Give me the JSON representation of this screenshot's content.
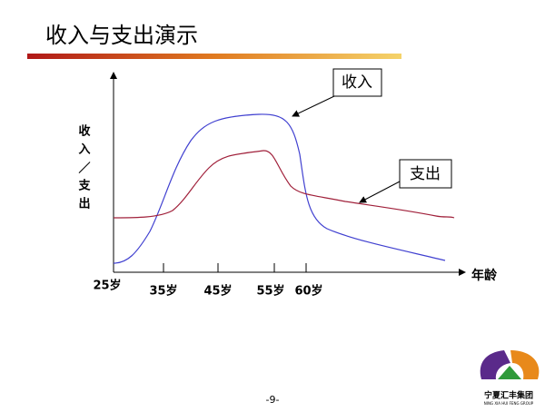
{
  "header": {
    "title": "收入与支出演示"
  },
  "diagram": {
    "y_axis_label": [
      "收",
      "入",
      "／",
      "支",
      "出"
    ],
    "x_axis_label": "年龄",
    "x_labels": [
      "25岁",
      "35岁",
      "45岁",
      "55岁",
      "60岁"
    ],
    "callouts": [
      "收入",
      "支出"
    ]
  },
  "footer": {
    "page": "-9-",
    "company": "宁夏汇丰集团",
    "company_en": "NING XIA HUI FENG GROUP"
  }
}
